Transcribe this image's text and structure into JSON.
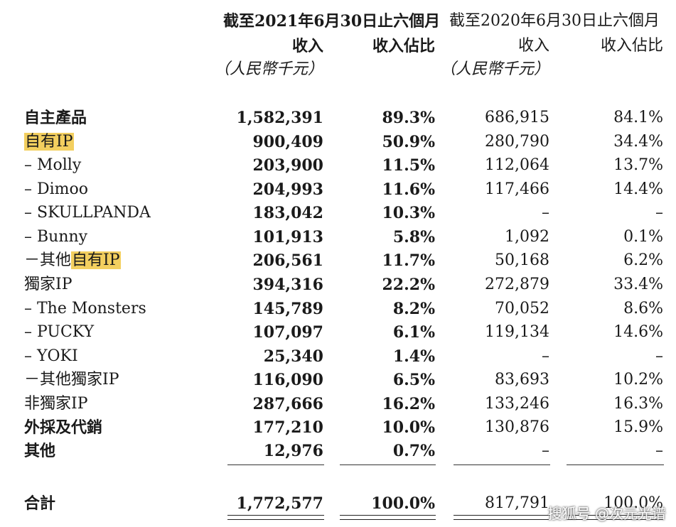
{
  "header": {
    "period_2021": "截至2021年6月30日止六個月",
    "period_2020": "截至2020年6月30日止六個月",
    "revenue_label": "收入",
    "share_label": "收入佔比",
    "unit": "（人民幣千元）"
  },
  "rows": [
    {
      "label": "自主產品",
      "rev2021": "1,582,391",
      "pct2021": "89.3%",
      "rev2020": "686,915",
      "pct2020": "84.1%"
    },
    {
      "label": "自有IP",
      "rev2021": "900,409",
      "pct2021": "50.9%",
      "rev2020": "280,790",
      "pct2020": "34.4%"
    },
    {
      "label": "– Molly",
      "rev2021": "203,900",
      "pct2021": "11.5%",
      "rev2020": "112,064",
      "pct2020": "13.7%"
    },
    {
      "label": "– Dimoo",
      "rev2021": "204,993",
      "pct2021": "11.6%",
      "rev2020": "117,466",
      "pct2020": "14.4%"
    },
    {
      "label": "– SKULLPANDA",
      "rev2021": "183,042",
      "pct2021": "10.3%",
      "rev2020": "–",
      "pct2020": "–"
    },
    {
      "label": "– Bunny",
      "rev2021": "101,913",
      "pct2021": "5.8%",
      "rev2020": "1,092",
      "pct2020": "0.1%"
    },
    {
      "label_prefix": "－其他",
      "label_highlight": "自有IP",
      "rev2021": "206,561",
      "pct2021": "11.7%",
      "rev2020": "50,168",
      "pct2020": "6.2%"
    },
    {
      "label": "獨家IP",
      "rev2021": "394,316",
      "pct2021": "22.2%",
      "rev2020": "272,879",
      "pct2020": "33.4%"
    },
    {
      "label": "– The Monsters",
      "rev2021": "145,789",
      "pct2021": "8.2%",
      "rev2020": "70,052",
      "pct2020": "8.6%"
    },
    {
      "label": "– PUCKY",
      "rev2021": "107,097",
      "pct2021": "6.1%",
      "rev2020": "119,134",
      "pct2020": "14.6%"
    },
    {
      "label": "– YOKI",
      "rev2021": "25,340",
      "pct2021": "1.4%",
      "rev2020": "–",
      "pct2020": "–"
    },
    {
      "label": "－其他獨家IP",
      "rev2021": "116,090",
      "pct2021": "6.5%",
      "rev2020": "83,693",
      "pct2020": "10.2%"
    },
    {
      "label": "非獨家IP",
      "rev2021": "287,666",
      "pct2021": "16.2%",
      "rev2020": "133,246",
      "pct2020": "16.3%"
    },
    {
      "label": "外採及代銷",
      "rev2021": "177,210",
      "pct2021": "10.0%",
      "rev2020": "130,876",
      "pct2020": "15.9%"
    },
    {
      "label": "其他",
      "rev2021": "12,976",
      "pct2021": "0.7%",
      "rev2020": "–",
      "pct2020": "–"
    }
  ],
  "total": {
    "label": "合計",
    "rev2021": "1,772,577",
    "pct2021": "100.0%",
    "rev2020": "817,791",
    "pct2020": "100.0%"
  },
  "watermark": "搜狐号 @次元光谱",
  "colors": {
    "highlight": "#f3cf5f",
    "text": "#1a1a1a"
  }
}
